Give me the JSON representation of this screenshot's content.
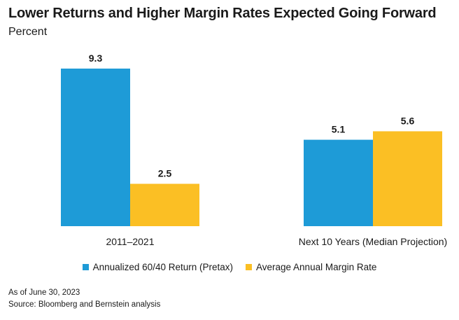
{
  "header": {
    "title": "Lower Returns and Higher Margin Rates Expected Going Forward",
    "subtitle": "Percent"
  },
  "chart_data": {
    "type": "bar",
    "title": "Lower Returns and Higher Margin Rates Expected Going Forward",
    "subtitle": "Percent",
    "categories": [
      "2011–2021",
      "Next 10 Years (Median Projection)"
    ],
    "series": [
      {
        "name": "Annualized 60/40 Return (Pretax)",
        "values": [
          9.3,
          5.1
        ],
        "color": "#1e9bd7"
      },
      {
        "name": "Average Annual Margin Rate",
        "values": [
          2.5,
          5.6
        ],
        "color": "#fbbf24"
      }
    ],
    "ylim": [
      0,
      10
    ],
    "grid": false,
    "legend_position": "bottom",
    "data_labels": true
  },
  "footnotes": {
    "as_of": "As of June 30, 2023",
    "source": "Source: Bloomberg and Bernstein analysis"
  }
}
